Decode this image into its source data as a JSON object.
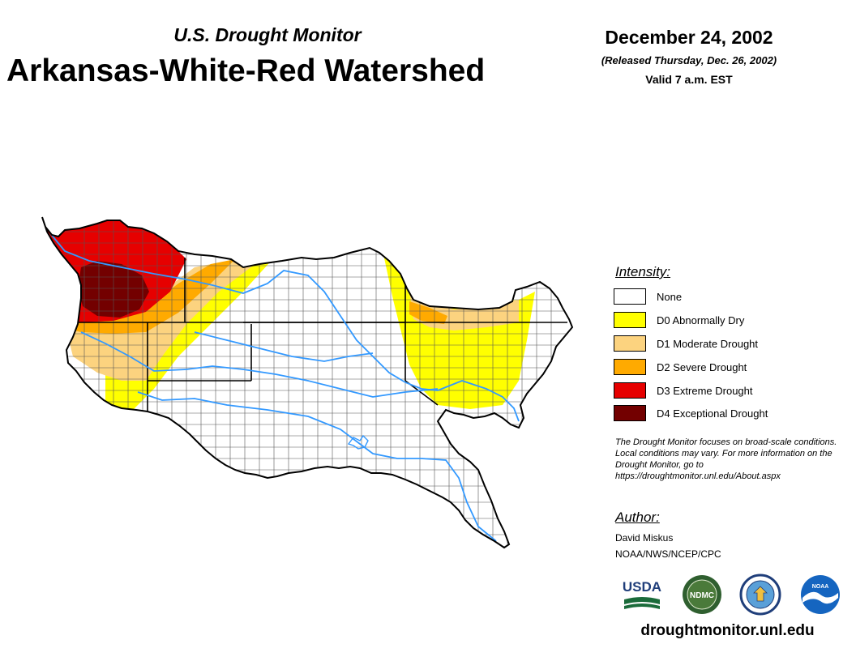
{
  "header": {
    "subtitle": "U.S. Drought Monitor",
    "title": "Arkansas-White-Red Watershed",
    "date": "December 24, 2002",
    "released": "(Released Thursday, Dec. 26, 2002)",
    "valid": "Valid 7 a.m. EST"
  },
  "legend": {
    "title": "Intensity:",
    "items": [
      {
        "label": "None",
        "color": "#ffffff"
      },
      {
        "label": "D0 Abnormally Dry",
        "color": "#ffff00"
      },
      {
        "label": "D1 Moderate Drought",
        "color": "#fcd37f"
      },
      {
        "label": "D2 Severe Drought",
        "color": "#ffaa00"
      },
      {
        "label": "D3 Extreme Drought",
        "color": "#e60000"
      },
      {
        "label": "D4 Exceptional Drought",
        "color": "#730000"
      }
    ]
  },
  "note": "The Drought Monitor focuses on broad-scale conditions. Local conditions may vary. For more information on the Drought Monitor, go to https://droughtmonitor.unl.edu/About.aspx",
  "author": {
    "title": "Author:",
    "name": "David Miskus",
    "org": "NOAA/NWS/NCEP/CPC"
  },
  "logos": [
    {
      "name": "usda-logo",
      "text": "USDA"
    },
    {
      "name": "ndmc-logo",
      "text": "NDMC"
    },
    {
      "name": "doc-seal-logo",
      "text": ""
    },
    {
      "name": "noaa-logo",
      "text": "NOAA"
    }
  ],
  "footer": {
    "url": "droughtmonitor.unl.edu"
  },
  "colors": {
    "river": "#3399ff",
    "boundary": "#000000",
    "county_line": "#555555"
  }
}
